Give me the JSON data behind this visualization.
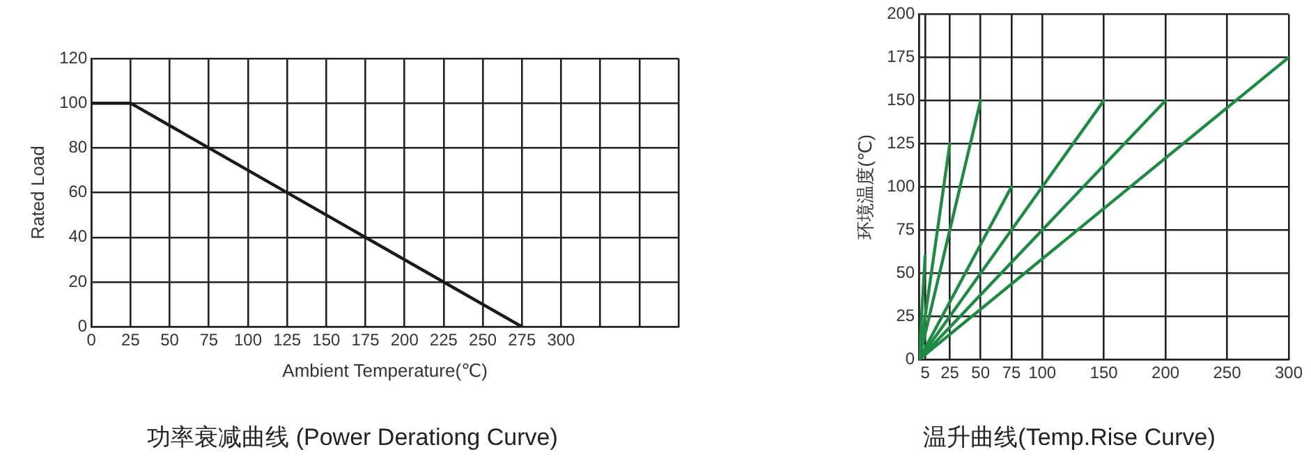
{
  "chart_data": [
    {
      "type": "line",
      "title": "功率衰减曲线 (Power Derationg Curve)",
      "xlabel": "Ambient Temperature(℃)",
      "ylabel": "Rated Load",
      "xlim": [
        0,
        375
      ],
      "xticks": [
        0,
        25,
        50,
        75,
        100,
        125,
        150,
        175,
        200,
        225,
        250,
        275,
        300,
        {
          "value": 325,
          "label": null
        },
        {
          "value": 350,
          "label": null
        },
        {
          "value": 375,
          "label": null
        }
      ],
      "ylim": [
        0,
        120
      ],
      "yticks": [
        0,
        20,
        40,
        60,
        80,
        100,
        120
      ],
      "grid": true,
      "legend": false,
      "marker": "none",
      "line_style": "solid",
      "series": [
        {
          "color": "#1a1a1a",
          "x": [
            0,
            25,
            275
          ],
          "values": [
            100,
            100,
            0
          ]
        }
      ]
    },
    {
      "type": "line",
      "title": "温升曲线(Temp.Rise Curve)",
      "ylabel": "环境温度(℃)",
      "xlim": [
        0,
        300
      ],
      "xticks": [
        {
          "value": 0,
          "label": null
        },
        5,
        25,
        50,
        75,
        100,
        150,
        200,
        250,
        300
      ],
      "ylim": [
        0,
        200
      ],
      "yticks": [
        0,
        25,
        50,
        75,
        100,
        125,
        150,
        175,
        200
      ],
      "grid": true,
      "legend": false,
      "marker": "none",
      "line_style": "solid",
      "series": [
        {
          "color": "#1e8a44",
          "x": [
            0,
            5
          ],
          "values": [
            0,
            60
          ]
        },
        {
          "color": "#1e8a44",
          "x": [
            0,
            25
          ],
          "values": [
            0,
            125
          ]
        },
        {
          "color": "#1e8a44",
          "x": [
            0,
            50
          ],
          "values": [
            0,
            150
          ]
        },
        {
          "color": "#1e8a44",
          "x": [
            0,
            75
          ],
          "values": [
            0,
            100
          ]
        },
        {
          "color": "#1e8a44",
          "x": [
            0,
            150
          ],
          "values": [
            0,
            150
          ]
        },
        {
          "color": "#1e8a44",
          "x": [
            0,
            200
          ],
          "values": [
            0,
            150
          ]
        },
        {
          "color": "#1e8a44",
          "x": [
            0,
            300
          ],
          "values": [
            0,
            175
          ]
        }
      ]
    }
  ]
}
